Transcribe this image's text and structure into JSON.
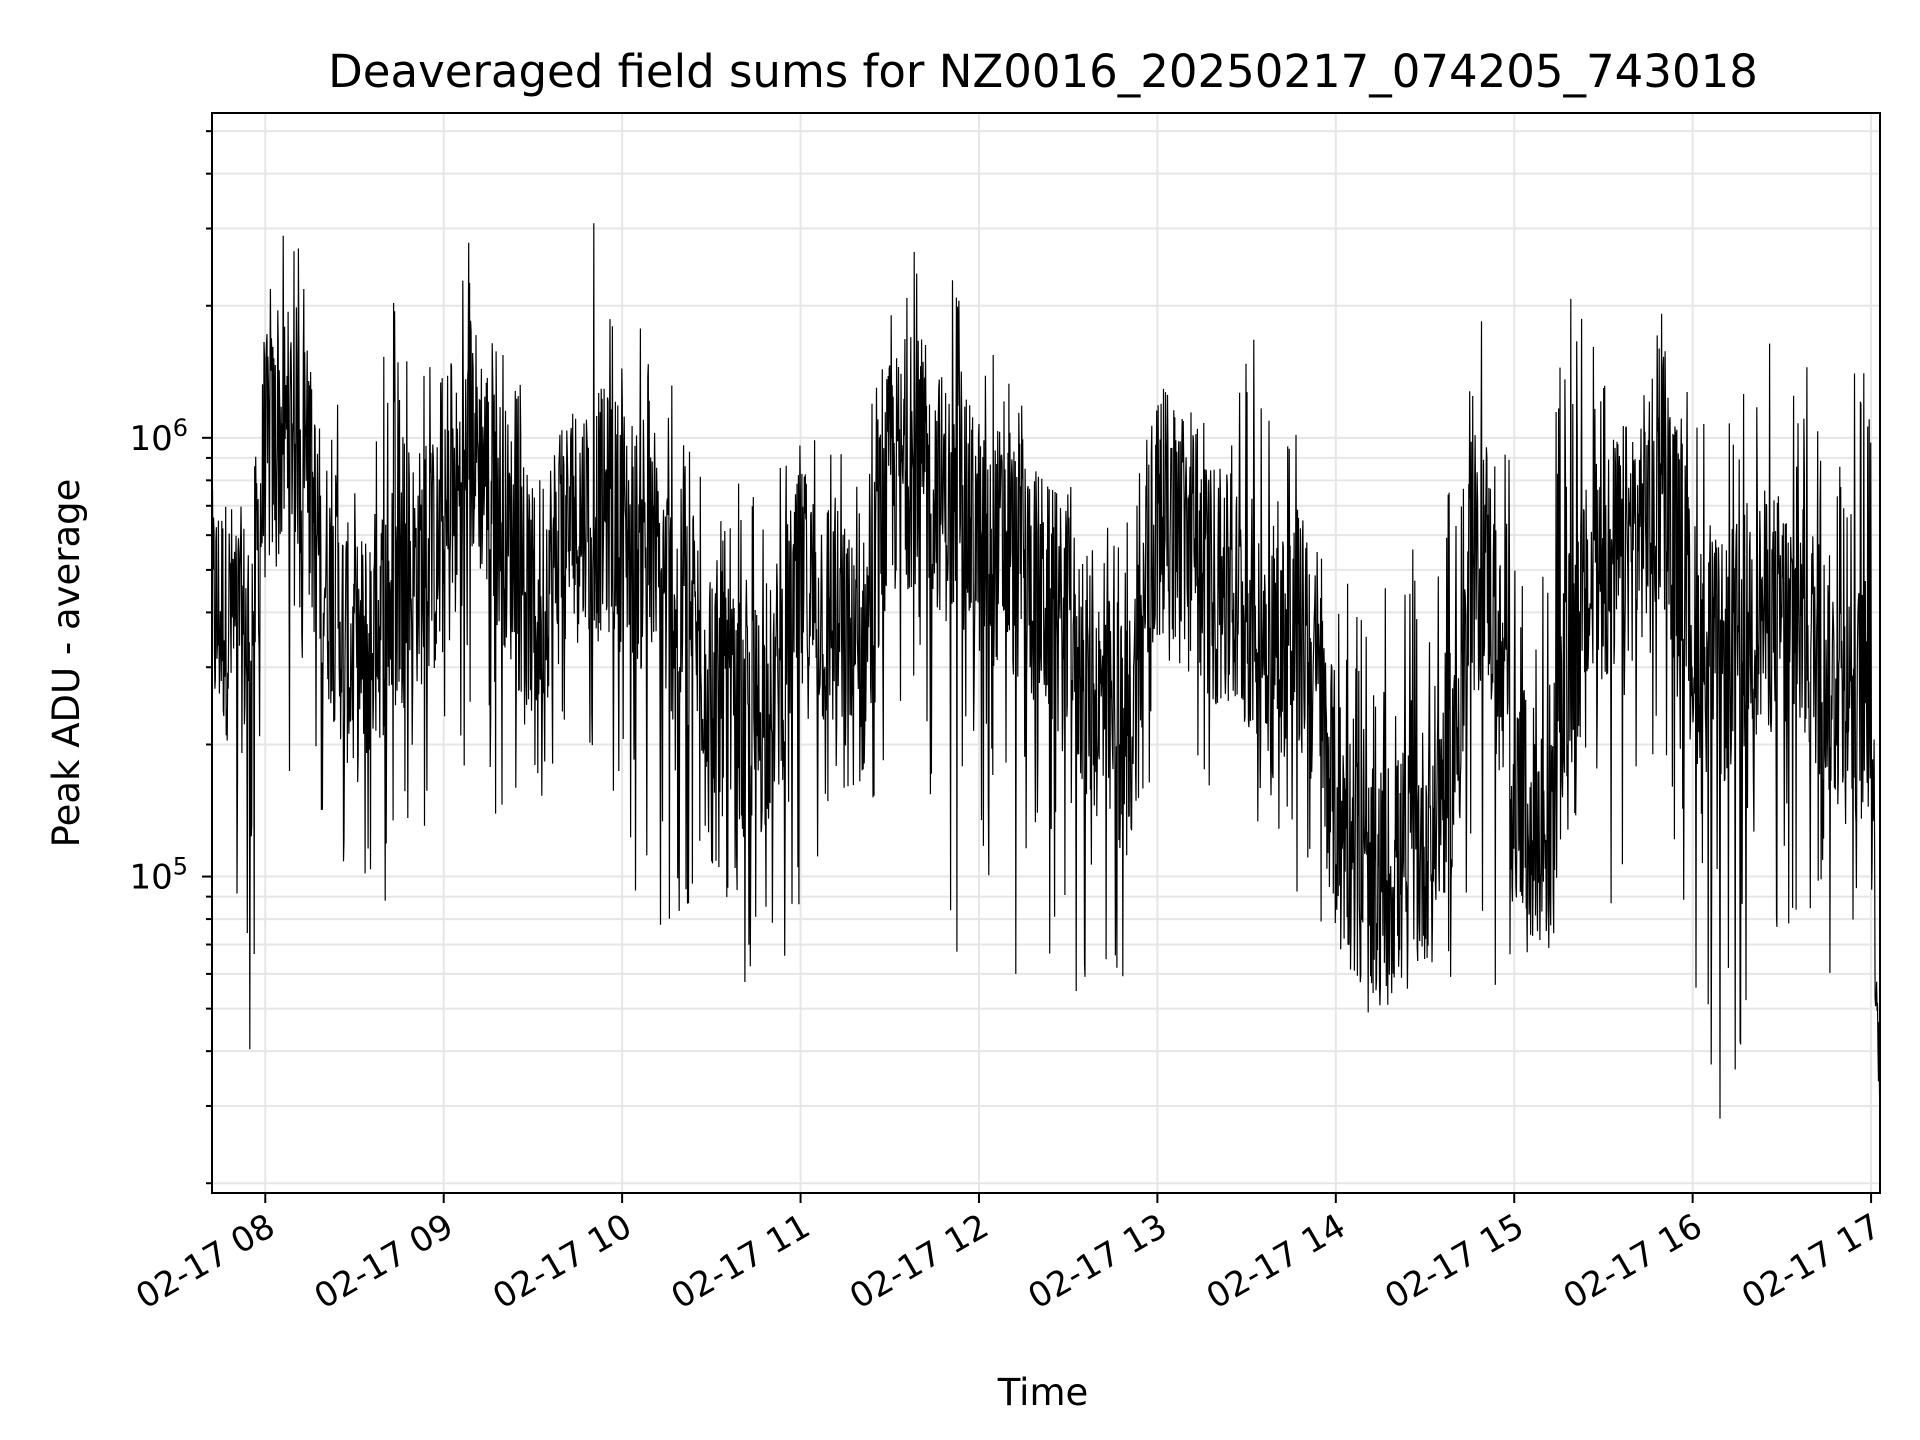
{
  "chart_data": {
    "type": "line",
    "title": "Deaveraged field sums for NZ0016_20250217_074205_743018",
    "xlabel": "Time",
    "ylabel": "Peak ADU - average",
    "yscale": "log",
    "ylim": [
      19000,
      5500000
    ],
    "xlim": [
      "2025-02-17T07:42:05",
      "2025-02-17T17:03:00"
    ],
    "x_tick_labels": [
      "02-17 08",
      "02-17 09",
      "02-17 10",
      "02-17 11",
      "02-17 12",
      "02-17 13",
      "02-17 14",
      "02-17 15",
      "02-17 16",
      "02-17 17"
    ],
    "y_tick_labels": [
      {
        "base": "10",
        "exp": "5",
        "value": 100000
      },
      {
        "base": "10",
        "exp": "6",
        "value": 1000000
      }
    ],
    "grid": true,
    "line_color": "#000000",
    "series": [
      {
        "x": [
          "2025-02-17T07:45",
          "2025-02-17T07:55",
          "2025-02-17T08:00",
          "2025-02-17T08:10",
          "2025-02-17T08:20",
          "2025-02-17T08:30",
          "2025-02-17T08:40",
          "2025-02-17T08:50",
          "2025-02-17T09:00",
          "2025-02-17T09:10",
          "2025-02-17T09:20",
          "2025-02-17T09:30",
          "2025-02-17T09:40",
          "2025-02-17T09:50",
          "2025-02-17T10:00",
          "2025-02-17T10:10",
          "2025-02-17T10:20",
          "2025-02-17T10:30",
          "2025-02-17T10:40",
          "2025-02-17T10:50",
          "2025-02-17T11:00",
          "2025-02-17T11:10",
          "2025-02-17T11:20",
          "2025-02-17T11:30",
          "2025-02-17T11:40",
          "2025-02-17T11:50",
          "2025-02-17T12:00",
          "2025-02-17T12:10",
          "2025-02-17T12:20",
          "2025-02-17T12:30",
          "2025-02-17T12:40",
          "2025-02-17T12:50",
          "2025-02-17T13:00",
          "2025-02-17T13:10",
          "2025-02-17T13:20",
          "2025-02-17T13:30",
          "2025-02-17T13:40",
          "2025-02-17T13:50",
          "2025-02-17T14:00",
          "2025-02-17T14:10",
          "2025-02-17T14:20",
          "2025-02-17T14:30",
          "2025-02-17T14:40",
          "2025-02-17T14:50",
          "2025-02-17T15:00",
          "2025-02-17T15:10",
          "2025-02-17T15:20",
          "2025-02-17T15:30",
          "2025-02-17T15:40",
          "2025-02-17T15:50",
          "2025-02-17T16:00",
          "2025-02-17T16:10",
          "2025-02-17T16:20",
          "2025-02-17T16:30",
          "2025-02-17T16:40",
          "2025-02-17T16:50",
          "2025-02-17T17:00",
          "2025-02-17T17:03"
        ],
        "y": [
          400000,
          350000,
          900000,
          1100000,
          500000,
          300000,
          400000,
          500000,
          550000,
          1000000,
          650000,
          400000,
          600000,
          700000,
          650000,
          500000,
          400000,
          300000,
          200000,
          250000,
          450000,
          400000,
          280000,
          800000,
          900000,
          700000,
          600000,
          550000,
          450000,
          350000,
          250000,
          200000,
          700000,
          600000,
          450000,
          400000,
          350000,
          350000,
          150000,
          90000,
          100000,
          120000,
          200000,
          600000,
          150000,
          120000,
          350000,
          500000,
          600000,
          800000,
          350000,
          300000,
          400000,
          400000,
          350000,
          250000,
          250000,
          30000
        ],
        "max": [
          550000,
          600000,
          2500000,
          3200000,
          1500000,
          1200000,
          2500000,
          1600000,
          1500000,
          3300000,
          1600000,
          1200000,
          1400000,
          4000000,
          1500000,
          2000000,
          1200000,
          900000,
          800000,
          900000,
          1100000,
          1000000,
          900000,
          2600000,
          3300000,
          2500000,
          1800000,
          1400000,
          1400000,
          900000,
          800000,
          700000,
          1300000,
          1400000,
          900000,
          1900000,
          1500000,
          900000,
          600000,
          400000,
          500000,
          600000,
          800000,
          2100000,
          1000000,
          800000,
          2400000,
          1900000,
          2200000,
          2000000,
          1200000,
          1000000,
          1500000,
          2000000,
          1400000,
          1300000,
          1800000,
          100000
        ],
        "min": [
          280000,
          33000,
          300000,
          150000,
          120000,
          80000,
          70000,
          130000,
          68000,
          120000,
          85000,
          130000,
          150000,
          180000,
          110000,
          52000,
          70000,
          100000,
          48000,
          80000,
          42000,
          150000,
          120000,
          180000,
          250000,
          48000,
          130000,
          50000,
          78000,
          48000,
          58000,
          58000,
          200000,
          160000,
          150000,
          120000,
          130000,
          58000,
          60000,
          55000,
          52000,
          55000,
          52000,
          50000,
          55000,
          62000,
          100000,
          70000,
          120000,
          200000,
          48000,
          23000,
          58000,
          68000,
          50000,
          42000,
          50000,
          30000
        ]
      }
    ]
  }
}
